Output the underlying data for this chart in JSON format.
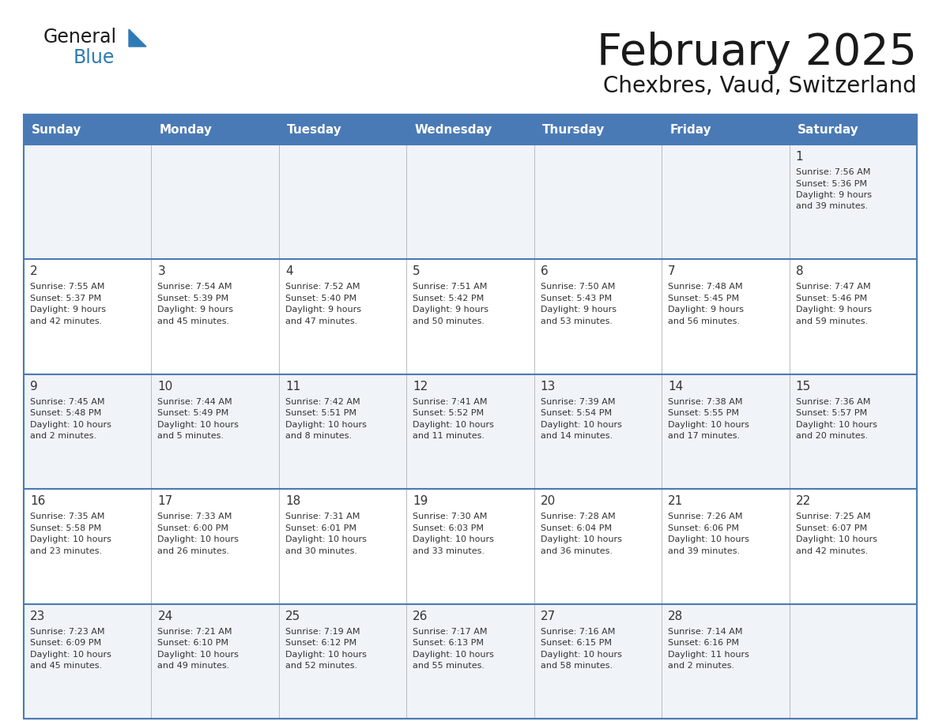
{
  "title": "February 2025",
  "subtitle": "Chexbres, Vaud, Switzerland",
  "header_bg": "#4a7ab5",
  "header_text_color": "#ffffff",
  "row_bg_odd": "#f0f4f8",
  "row_bg_even": "#ffffff",
  "border_color": "#4a7ab5",
  "divider_color": "#4a7ab5",
  "text_color": "#333333",
  "logo_text_color": "#1a1a1a",
  "logo_blue_color": "#2e7ab5",
  "days_of_week": [
    "Sunday",
    "Monday",
    "Tuesday",
    "Wednesday",
    "Thursday",
    "Friday",
    "Saturday"
  ],
  "calendar_data": [
    [
      {
        "day": "",
        "sunrise": "",
        "sunset": "",
        "daylight": ""
      },
      {
        "day": "",
        "sunrise": "",
        "sunset": "",
        "daylight": ""
      },
      {
        "day": "",
        "sunrise": "",
        "sunset": "",
        "daylight": ""
      },
      {
        "day": "",
        "sunrise": "",
        "sunset": "",
        "daylight": ""
      },
      {
        "day": "",
        "sunrise": "",
        "sunset": "",
        "daylight": ""
      },
      {
        "day": "",
        "sunrise": "",
        "sunset": "",
        "daylight": ""
      },
      {
        "day": "1",
        "sunrise": "7:56 AM",
        "sunset": "5:36 PM",
        "daylight": "9 hours\nand 39 minutes."
      }
    ],
    [
      {
        "day": "2",
        "sunrise": "7:55 AM",
        "sunset": "5:37 PM",
        "daylight": "9 hours\nand 42 minutes."
      },
      {
        "day": "3",
        "sunrise": "7:54 AM",
        "sunset": "5:39 PM",
        "daylight": "9 hours\nand 45 minutes."
      },
      {
        "day": "4",
        "sunrise": "7:52 AM",
        "sunset": "5:40 PM",
        "daylight": "9 hours\nand 47 minutes."
      },
      {
        "day": "5",
        "sunrise": "7:51 AM",
        "sunset": "5:42 PM",
        "daylight": "9 hours\nand 50 minutes."
      },
      {
        "day": "6",
        "sunrise": "7:50 AM",
        "sunset": "5:43 PM",
        "daylight": "9 hours\nand 53 minutes."
      },
      {
        "day": "7",
        "sunrise": "7:48 AM",
        "sunset": "5:45 PM",
        "daylight": "9 hours\nand 56 minutes."
      },
      {
        "day": "8",
        "sunrise": "7:47 AM",
        "sunset": "5:46 PM",
        "daylight": "9 hours\nand 59 minutes."
      }
    ],
    [
      {
        "day": "9",
        "sunrise": "7:45 AM",
        "sunset": "5:48 PM",
        "daylight": "10 hours\nand 2 minutes."
      },
      {
        "day": "10",
        "sunrise": "7:44 AM",
        "sunset": "5:49 PM",
        "daylight": "10 hours\nand 5 minutes."
      },
      {
        "day": "11",
        "sunrise": "7:42 AM",
        "sunset": "5:51 PM",
        "daylight": "10 hours\nand 8 minutes."
      },
      {
        "day": "12",
        "sunrise": "7:41 AM",
        "sunset": "5:52 PM",
        "daylight": "10 hours\nand 11 minutes."
      },
      {
        "day": "13",
        "sunrise": "7:39 AM",
        "sunset": "5:54 PM",
        "daylight": "10 hours\nand 14 minutes."
      },
      {
        "day": "14",
        "sunrise": "7:38 AM",
        "sunset": "5:55 PM",
        "daylight": "10 hours\nand 17 minutes."
      },
      {
        "day": "15",
        "sunrise": "7:36 AM",
        "sunset": "5:57 PM",
        "daylight": "10 hours\nand 20 minutes."
      }
    ],
    [
      {
        "day": "16",
        "sunrise": "7:35 AM",
        "sunset": "5:58 PM",
        "daylight": "10 hours\nand 23 minutes."
      },
      {
        "day": "17",
        "sunrise": "7:33 AM",
        "sunset": "6:00 PM",
        "daylight": "10 hours\nand 26 minutes."
      },
      {
        "day": "18",
        "sunrise": "7:31 AM",
        "sunset": "6:01 PM",
        "daylight": "10 hours\nand 30 minutes."
      },
      {
        "day": "19",
        "sunrise": "7:30 AM",
        "sunset": "6:03 PM",
        "daylight": "10 hours\nand 33 minutes."
      },
      {
        "day": "20",
        "sunrise": "7:28 AM",
        "sunset": "6:04 PM",
        "daylight": "10 hours\nand 36 minutes."
      },
      {
        "day": "21",
        "sunrise": "7:26 AM",
        "sunset": "6:06 PM",
        "daylight": "10 hours\nand 39 minutes."
      },
      {
        "day": "22",
        "sunrise": "7:25 AM",
        "sunset": "6:07 PM",
        "daylight": "10 hours\nand 42 minutes."
      }
    ],
    [
      {
        "day": "23",
        "sunrise": "7:23 AM",
        "sunset": "6:09 PM",
        "daylight": "10 hours\nand 45 minutes."
      },
      {
        "day": "24",
        "sunrise": "7:21 AM",
        "sunset": "6:10 PM",
        "daylight": "10 hours\nand 49 minutes."
      },
      {
        "day": "25",
        "sunrise": "7:19 AM",
        "sunset": "6:12 PM",
        "daylight": "10 hours\nand 52 minutes."
      },
      {
        "day": "26",
        "sunrise": "7:17 AM",
        "sunset": "6:13 PM",
        "daylight": "10 hours\nand 55 minutes."
      },
      {
        "day": "27",
        "sunrise": "7:16 AM",
        "sunset": "6:15 PM",
        "daylight": "10 hours\nand 58 minutes."
      },
      {
        "day": "28",
        "sunrise": "7:14 AM",
        "sunset": "6:16 PM",
        "daylight": "11 hours\nand 2 minutes."
      },
      {
        "day": "",
        "sunrise": "",
        "sunset": "",
        "daylight": ""
      }
    ]
  ]
}
